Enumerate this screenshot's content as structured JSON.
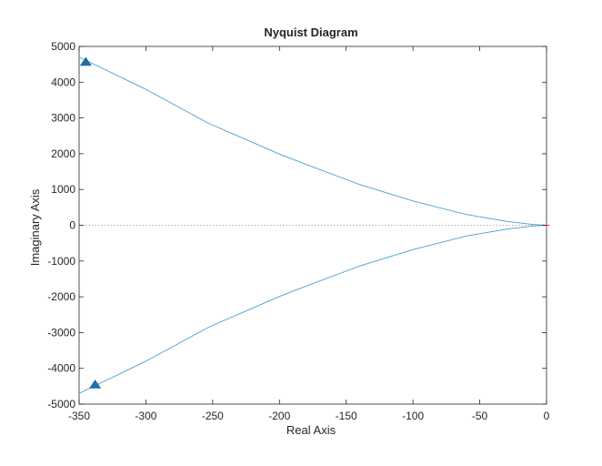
{
  "chart_data": {
    "type": "line",
    "title": "Nyquist Diagram",
    "xlabel": "Real Axis",
    "ylabel": "Imaginary Axis",
    "xlim": [
      -350,
      0
    ],
    "ylim": [
      -5000,
      5000
    ],
    "xticks": [
      -350,
      -300,
      -250,
      -200,
      -150,
      -100,
      -50,
      0
    ],
    "xtick_labels": [
      "-350",
      "-300",
      "-250",
      "-200",
      "-150",
      "-100",
      "-50",
      "0"
    ],
    "yticks": [
      -5000,
      -4000,
      -3000,
      -2000,
      -1000,
      0,
      1000,
      2000,
      3000,
      4000,
      5000
    ],
    "ytick_labels": [
      "-5000",
      "-4000",
      "-3000",
      "-2000",
      "-1000",
      "0",
      "1000",
      "2000",
      "3000",
      "4000",
      "5000"
    ],
    "grid": false,
    "series": [
      {
        "color": "#4a9fd3",
        "x": [
          -350,
          -300,
          -253,
          -200,
          -180,
          -140,
          -100,
          -60,
          -30,
          -10,
          0
        ],
        "y": [
          4700,
          3800,
          2850,
          1990,
          1700,
          1140,
          680,
          300,
          110,
          20,
          0
        ]
      },
      {
        "color": "#4a9fd3",
        "x": [
          -350,
          -300,
          -253,
          -200,
          -180,
          -140,
          -100,
          -60,
          -30,
          -10,
          0
        ],
        "y": [
          -4700,
          -3800,
          -2850,
          -1990,
          -1700,
          -1140,
          -680,
          -300,
          -110,
          -20,
          0
        ]
      }
    ],
    "arrows": [
      {
        "x": -345,
        "y": 4580,
        "direction": "up",
        "color": "#1f6fa8"
      },
      {
        "x": -338,
        "y": -4440,
        "direction": "up",
        "color": "#1f6fa8"
      }
    ],
    "reference_line": {
      "y": 0,
      "style": "dotted",
      "color": "#999999"
    },
    "critical_point": {
      "x": 0,
      "y": 0,
      "marker": "+",
      "color": "#e03030"
    }
  }
}
